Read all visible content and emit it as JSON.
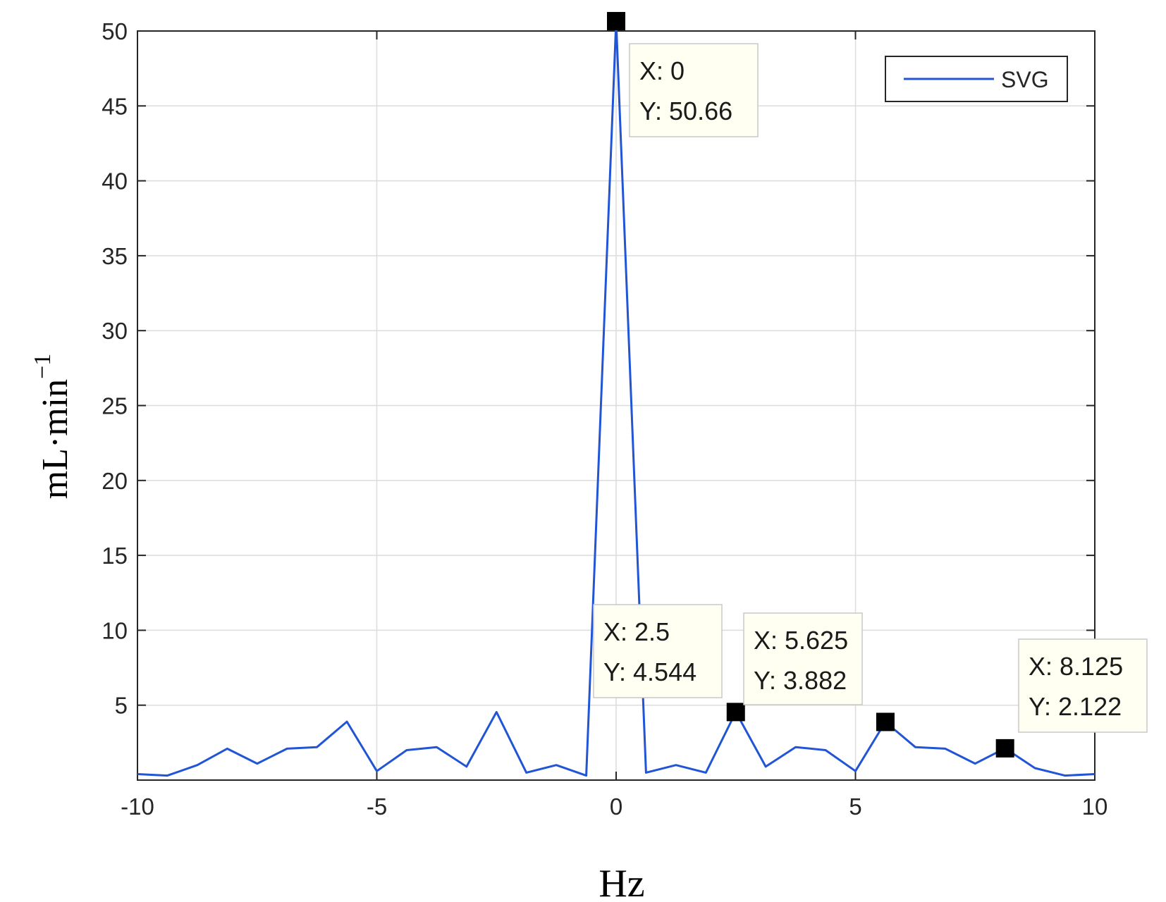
{
  "chart_data": {
    "type": "line",
    "xlabel": "Hz",
    "ylabel": "mL·min",
    "ylabel_superscript": "−1",
    "xlim": [
      -10,
      10
    ],
    "ylim": [
      0,
      50
    ],
    "x_ticks": [
      -10,
      -5,
      0,
      5,
      10
    ],
    "x_tick_labels": [
      "-10",
      "-5",
      "0",
      "5",
      "10"
    ],
    "y_ticks": [
      5,
      10,
      15,
      20,
      25,
      30,
      35,
      40,
      45,
      50
    ],
    "y_tick_labels": [
      "5",
      "10",
      "15",
      "20",
      "25",
      "30",
      "35",
      "40",
      "45",
      "50"
    ],
    "grid": true,
    "legend_position": "top-right",
    "series": [
      {
        "name": "SVG",
        "color": "#2155d6",
        "x": [
          -10,
          -9.375,
          -8.75,
          -8.125,
          -7.5,
          -6.875,
          -6.25,
          -5.625,
          -5,
          -4.375,
          -3.75,
          -3.125,
          -2.5,
          -1.875,
          -1.25,
          -0.625,
          0,
          0.625,
          1.25,
          1.875,
          2.5,
          3.125,
          3.75,
          4.375,
          5,
          5.625,
          6.25,
          6.875,
          7.5,
          8.125,
          8.75,
          9.375,
          10
        ],
        "y": [
          0.4,
          0.3,
          1.0,
          2.1,
          1.1,
          2.1,
          2.2,
          3.9,
          0.6,
          2.0,
          2.2,
          0.9,
          4.544,
          0.5,
          1.0,
          0.3,
          50.66,
          0.5,
          1.0,
          0.5,
          4.544,
          0.9,
          2.2,
          2.0,
          0.6,
          3.882,
          2.2,
          2.1,
          1.1,
          2.122,
          0.8,
          0.3,
          0.4
        ]
      }
    ],
    "datatips": [
      {
        "x": 0,
        "y": 50.66,
        "x_text": "X: 0",
        "y_text": "Y: 50.66"
      },
      {
        "x": 2.5,
        "y": 4.544,
        "x_text": "X: 2.5",
        "y_text": "Y: 4.544"
      },
      {
        "x": 5.625,
        "y": 3.882,
        "x_text": "X: 5.625",
        "y_text": "Y: 3.882"
      },
      {
        "x": 8.125,
        "y": 2.122,
        "x_text": "X: 8.125",
        "y_text": "Y: 2.122"
      }
    ]
  }
}
